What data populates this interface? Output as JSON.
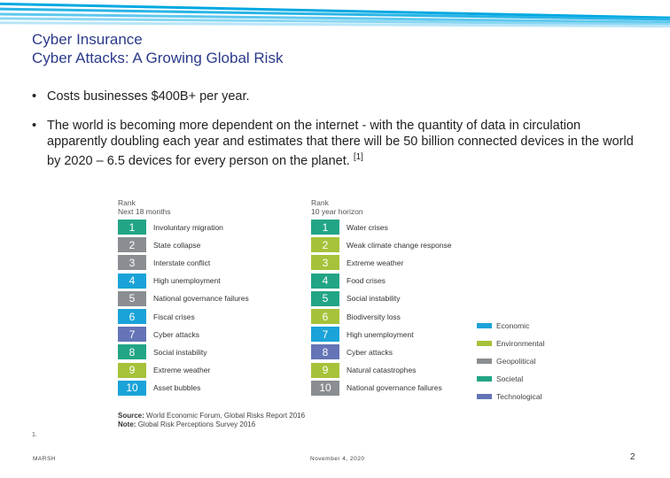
{
  "slide": {
    "title": "Cyber Insurance",
    "subtitle": "Cyber Attacks: A Growing Global Risk",
    "bullet_char": "•",
    "bullets": [
      {
        "text": "Costs businesses $400B+ per year."
      },
      {
        "text": "The world is becoming more dependent on the internet - with the quantity of data in circulation apparently doubling each year and estimates that there will be 50 billion connected devices in the world by 2020 – 6.5 devices for every person on the planet.",
        "ref": "[1]"
      }
    ]
  },
  "figure": {
    "left_header": {
      "line1": "Rank",
      "line2": "Next 18 months"
    },
    "right_header": {
      "line1": "Rank",
      "line2": "10 year horizon"
    },
    "left_rows": [
      {
        "rank": "1",
        "label": "Involuntary migration",
        "category": "Societal"
      },
      {
        "rank": "2",
        "label": "State collapse",
        "category": "Geopolitical"
      },
      {
        "rank": "3",
        "label": "Interstate conflict",
        "category": "Geopolitical"
      },
      {
        "rank": "4",
        "label": "High unemployment",
        "category": "Economic"
      },
      {
        "rank": "5",
        "label": "National governance failures",
        "category": "Geopolitical"
      },
      {
        "rank": "6",
        "label": "Fiscal crises",
        "category": "Economic"
      },
      {
        "rank": "7",
        "label": "Cyber attacks",
        "category": "Technological"
      },
      {
        "rank": "8",
        "label": "Social instability",
        "category": "Societal"
      },
      {
        "rank": "9",
        "label": "Extreme weather",
        "category": "Environmental"
      },
      {
        "rank": "10",
        "label": "Asset bubbles",
        "category": "Economic"
      }
    ],
    "right_rows": [
      {
        "rank": "1",
        "label": "Water crises",
        "category": "Societal"
      },
      {
        "rank": "2",
        "label": "Weak climate change response",
        "category": "Environmental"
      },
      {
        "rank": "3",
        "label": "Extreme weather",
        "category": "Environmental"
      },
      {
        "rank": "4",
        "label": "Food crises",
        "category": "Societal"
      },
      {
        "rank": "5",
        "label": "Social instability",
        "category": "Societal"
      },
      {
        "rank": "6",
        "label": "Biodiversity loss",
        "category": "Environmental"
      },
      {
        "rank": "7",
        "label": "High unemployment",
        "category": "Economic"
      },
      {
        "rank": "8",
        "label": "Cyber attacks",
        "category": "Technological"
      },
      {
        "rank": "9",
        "label": "Natural catastrophes",
        "category": "Environmental"
      },
      {
        "rank": "10",
        "label": "National governance failures",
        "category": "Geopolitical"
      }
    ],
    "legend": [
      {
        "label": "Economic",
        "color": "#1aa3d8"
      },
      {
        "label": "Environmental",
        "color": "#a6c23a"
      },
      {
        "label": "Geopolitical",
        "color": "#8a8d91"
      },
      {
        "label": "Societal",
        "color": "#22a585"
      },
      {
        "label": "Technological",
        "color": "#6474b6"
      }
    ],
    "source_label": "Source:",
    "source_text": "World Economic Forum, Global Risks Report 2016",
    "note_label": "Note:",
    "note_text": "Global Risk Perceptions Survey 2016"
  },
  "footer": {
    "footnote_mark": "1.",
    "company": "MARSH",
    "date": "November 4, 2020",
    "page": "2"
  },
  "colors": {
    "title": "#2b3a8a",
    "band": [
      "#00a8e1",
      "#5fc8ee",
      "#b8e5f7"
    ]
  }
}
